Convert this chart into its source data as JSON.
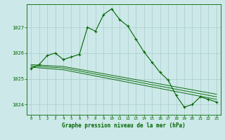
{
  "bg_color": "#cce8e8",
  "grid_color": "#aacccc",
  "line_color": "#006600",
  "x_label": "Graphe pression niveau de la mer (hPa)",
  "xlim": [
    -0.5,
    23.5
  ],
  "ylim": [
    1023.6,
    1027.9
  ],
  "yticks": [
    1024,
    1025,
    1026,
    1027
  ],
  "xticks": [
    0,
    1,
    2,
    3,
    4,
    5,
    6,
    7,
    8,
    9,
    10,
    11,
    12,
    13,
    14,
    15,
    16,
    17,
    18,
    19,
    20,
    21,
    22,
    23
  ],
  "line1_x": [
    0,
    1,
    2,
    3,
    4,
    5,
    6,
    7,
    8,
    9,
    10,
    11,
    12,
    13,
    14,
    15,
    16,
    17,
    18,
    19,
    20,
    21,
    22,
    23
  ],
  "line1_y": [
    1025.4,
    1025.55,
    1025.9,
    1026.0,
    1025.75,
    1025.85,
    1025.95,
    1027.0,
    1026.85,
    1027.5,
    1027.72,
    1027.3,
    1027.05,
    1026.55,
    1026.05,
    1025.65,
    1025.25,
    1024.95,
    1024.35,
    1023.9,
    1024.0,
    1024.3,
    1024.2,
    1024.1
  ],
  "line2_x": [
    0,
    4,
    23
  ],
  "line2_y": [
    1025.45,
    1025.35,
    1024.2
  ],
  "line3_x": [
    0,
    4,
    23
  ],
  "line3_y": [
    1025.5,
    1025.42,
    1024.3
  ],
  "line4_x": [
    0,
    4,
    23
  ],
  "line4_y": [
    1025.55,
    1025.48,
    1024.4
  ]
}
